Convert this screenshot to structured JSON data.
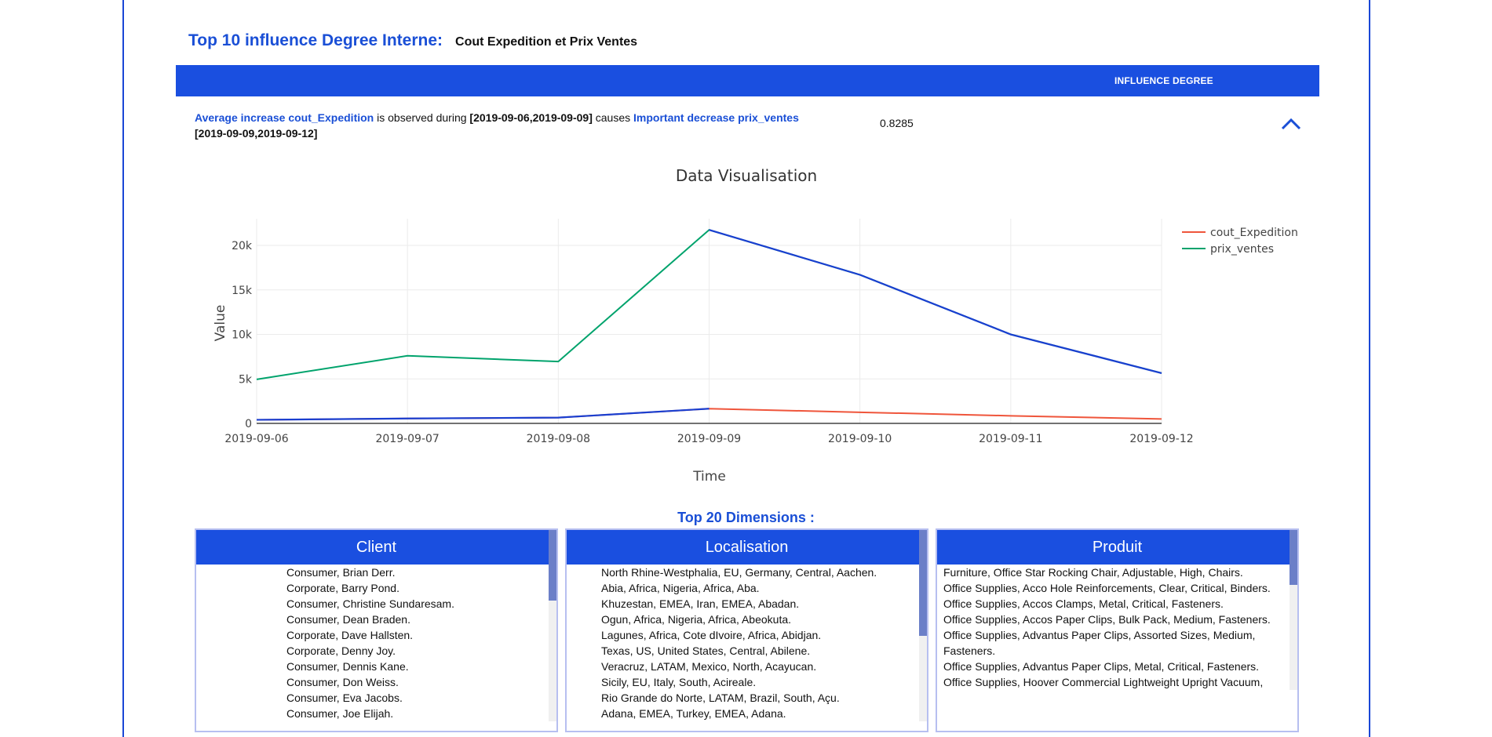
{
  "header": {
    "title": "Top 10 influence Degree Interne:",
    "subtitle": "Cout Expedition et Prix Ventes"
  },
  "influence_table": {
    "header_label": "INFLUENCE DEGREE",
    "row": {
      "cause_label": "Average increase cout_Expedition",
      "observed_text": "is observed during",
      "cause_period": "[2019-09-06,2019-09-09]",
      "causes_text": "causes",
      "effect_label": "Important decrease prix_ventes",
      "effect_period": "[2019-09-09,2019-09-12]",
      "score": "0.8285"
    }
  },
  "colors": {
    "accent": "#1a4fe0",
    "cout_expedition": "#ef553b",
    "prix_ventes": "#00a36c",
    "highlight": "#1a3fd0"
  },
  "chart_data": {
    "type": "line",
    "title": "Data Visualisation",
    "xlabel": "Time",
    "ylabel": "Value",
    "categories": [
      "2019-09-06",
      "2019-09-07",
      "2019-09-08",
      "2019-09-09",
      "2019-09-10",
      "2019-09-11",
      "2019-09-12"
    ],
    "ylim": [
      0,
      23000
    ],
    "yticks": [
      0,
      5000,
      10000,
      15000,
      20000
    ],
    "ytick_labels": [
      "0",
      "5k",
      "10k",
      "15k",
      "20k"
    ],
    "grid": true,
    "legend": "top-right",
    "series": [
      {
        "name": "cout_Expedition",
        "values": [
          400,
          550,
          650,
          1650,
          1250,
          850,
          500
        ]
      },
      {
        "name": "prix_ventes",
        "values": [
          4950,
          7600,
          6950,
          21750,
          16700,
          10000,
          5650
        ]
      }
    ],
    "highlight": [
      {
        "series": "cout_Expedition",
        "from": "2019-09-06",
        "to": "2019-09-09"
      },
      {
        "series": "prix_ventes",
        "from": "2019-09-09",
        "to": "2019-09-12"
      }
    ]
  },
  "dimensions": {
    "title": "Top 20 Dimensions :",
    "panels": [
      {
        "title": "Client",
        "items": [
          "Consumer, Brian Derr.",
          "Corporate, Barry Pond.",
          "Consumer, Christine Sundaresam.",
          "Consumer, Dean Braden.",
          "Corporate, Dave Hallsten.",
          "Corporate, Denny Joy.",
          "Consumer, Dennis Kane.",
          "Consumer, Don Weiss.",
          "Consumer, Eva Jacobs.",
          "Consumer, Joe Elijah."
        ]
      },
      {
        "title": "Localisation",
        "items": [
          "North Rhine-Westphalia, EU, Germany, Central, Aachen.",
          "Abia, Africa, Nigeria, Africa, Aba.",
          "Khuzestan, EMEA, Iran, EMEA, Abadan.",
          "Ogun, Africa, Nigeria, Africa, Abeokuta.",
          "Lagunes, Africa, Cote dIvoire, Africa, Abidjan.",
          "Texas, US, United States, Central, Abilene.",
          "Veracruz, LATAM, Mexico, North, Acayucan.",
          "Sicily, EU, Italy, South, Acireale.",
          "Rio Grande do Norte, LATAM, Brazil, South, Açu.",
          "Adana, EMEA, Turkey, EMEA, Adana."
        ]
      },
      {
        "title": "Produit",
        "items": [
          "Furniture, Office Star Rocking Chair, Adjustable, High, Chairs.",
          "Office Supplies, Acco Hole Reinforcements, Clear, Critical, Binders.",
          "Office Supplies, Accos Clamps, Metal, Critical, Fasteners.",
          "Office Supplies, Accos Paper Clips, Bulk Pack, Medium, Fasteners.",
          "Office Supplies, Advantus Paper Clips, Assorted Sizes, Medium, Fasteners.",
          "Office Supplies, Advantus Paper Clips, Metal, Critical, Fasteners.",
          "Office Supplies, Hoover Commercial Lightweight Upright Vacuum,"
        ]
      }
    ]
  }
}
